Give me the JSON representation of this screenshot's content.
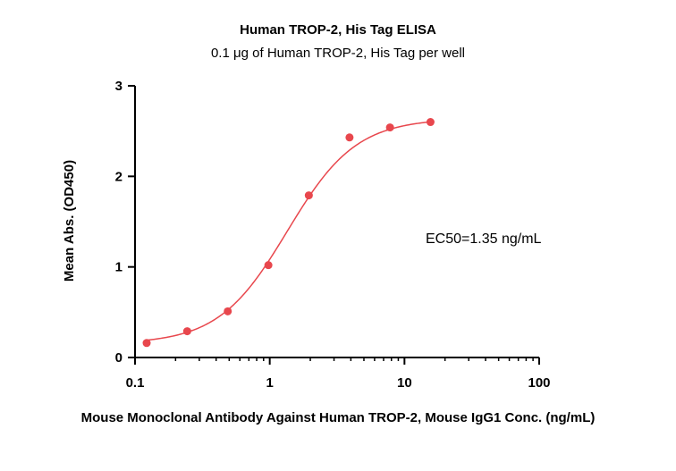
{
  "chart_data": {
    "type": "scatter",
    "title": "Human TROP-2, His Tag ELISA",
    "subtitle": "0.1 μg of Human TROP-2, His Tag per well",
    "xlabel": "Mouse Monoclonal Antibody Against Human TROP-2, Mouse IgG1 Conc. (ng/mL)",
    "ylabel": "Mean Abs. (OD450)",
    "x_scale": "log",
    "xlim": [
      0.1,
      100
    ],
    "ylim": [
      0,
      3
    ],
    "x_ticks": [
      {
        "value": 0.1,
        "label": "0.1"
      },
      {
        "value": 1,
        "label": "1"
      },
      {
        "value": 10,
        "label": "10"
      },
      {
        "value": 100,
        "label": "100"
      }
    ],
    "y_ticks": [
      {
        "value": 0,
        "label": "0"
      },
      {
        "value": 1,
        "label": "1"
      },
      {
        "value": 2,
        "label": "2"
      },
      {
        "value": 3,
        "label": "3"
      }
    ],
    "points": [
      {
        "x": 0.122,
        "y": 0.16
      },
      {
        "x": 0.244,
        "y": 0.29
      },
      {
        "x": 0.488,
        "y": 0.51
      },
      {
        "x": 0.977,
        "y": 1.02
      },
      {
        "x": 1.95,
        "y": 1.79
      },
      {
        "x": 3.91,
        "y": 2.43
      },
      {
        "x": 7.81,
        "y": 2.54
      },
      {
        "x": 15.6,
        "y": 2.6
      }
    ],
    "fit_curve": {
      "model": "4PL",
      "bottom": 0.15,
      "top": 2.64,
      "ec50": 1.35,
      "hill": 1.7,
      "x_range": [
        0.122,
        15.6
      ]
    },
    "annotation": "EC50=1.35 ng/mL",
    "color": "#e8474d",
    "grid": false,
    "legend": "none"
  }
}
